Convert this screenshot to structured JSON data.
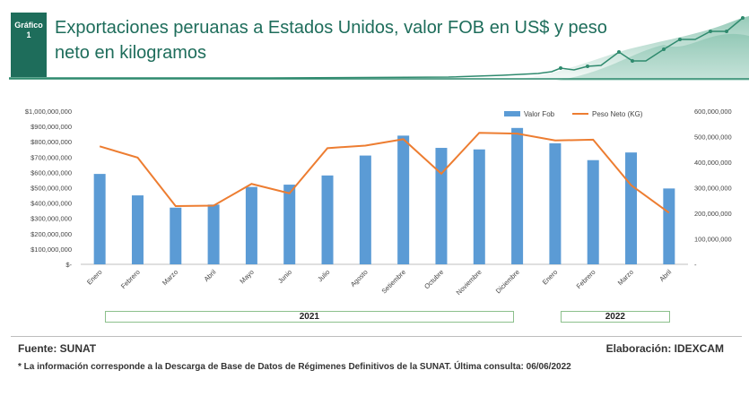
{
  "header": {
    "badge_line1": "Gráfico",
    "badge_line2": "1",
    "title": "Exportaciones peruanas a Estados Unidos, valor FOB en US$ y peso neto en kilogramos"
  },
  "colors": {
    "brand": "#1e6d5b",
    "bar": "#5b9bd5",
    "line": "#ed7d31",
    "year_border": "#8cc08c"
  },
  "chart_data": {
    "type": "bar",
    "title": "",
    "categories": [
      "Enero",
      "Febrero",
      "Marzo",
      "Abril",
      "Mayo",
      "Junio",
      "Julio",
      "Agosto",
      "Setiembre",
      "Octubre",
      "Noviembre",
      "Diciembre",
      "Enero",
      "Febrero",
      "Marzo",
      "Abril"
    ],
    "series": [
      {
        "name": "Valor Fob",
        "type": "bar",
        "axis": "left",
        "values": [
          590000000,
          450000000,
          370000000,
          390000000,
          505000000,
          520000000,
          580000000,
          710000000,
          840000000,
          760000000,
          750000000,
          890000000,
          790000000,
          680000000,
          730000000,
          495000000
        ]
      },
      {
        "name": "Peso Neto (KG)",
        "type": "line",
        "axis": "right",
        "values": [
          462000000,
          418000000,
          228000000,
          230000000,
          315000000,
          278000000,
          455000000,
          465000000,
          490000000,
          355000000,
          515000000,
          512000000,
          485000000,
          488000000,
          310000000,
          202000000
        ]
      }
    ],
    "left_axis": {
      "min": 0,
      "max": 1000000000,
      "step": 100000000,
      "tick_labels": [
        "$-",
        "$100,000,000",
        "$200,000,000",
        "$300,000,000",
        "$400,000,000",
        "$500,000,000",
        "$600,000,000",
        "$700,000,000",
        "$800,000,000",
        "$900,000,000",
        "$1,000,000,000"
      ]
    },
    "right_axis": {
      "min": 0,
      "max": 600000000,
      "step": 100000000,
      "tick_labels": [
        "-",
        "100,000,000",
        "200,000,000",
        "300,000,000",
        "400,000,000",
        "500,000,000",
        "600,000,000"
      ]
    },
    "legend_position": "top-right",
    "year_groups": [
      {
        "label": "2021",
        "start": 0,
        "end": 11
      },
      {
        "label": "2022",
        "start": 12,
        "end": 15
      }
    ]
  },
  "footer": {
    "source": "Fuente: SUNAT",
    "elaboration": "Elaboración: IDEXCAM",
    "note": "* La información corresponde a la Descarga de Base de Datos de Régimenes Definitivos de la SUNAT. Última consulta: 06/06/2022"
  }
}
